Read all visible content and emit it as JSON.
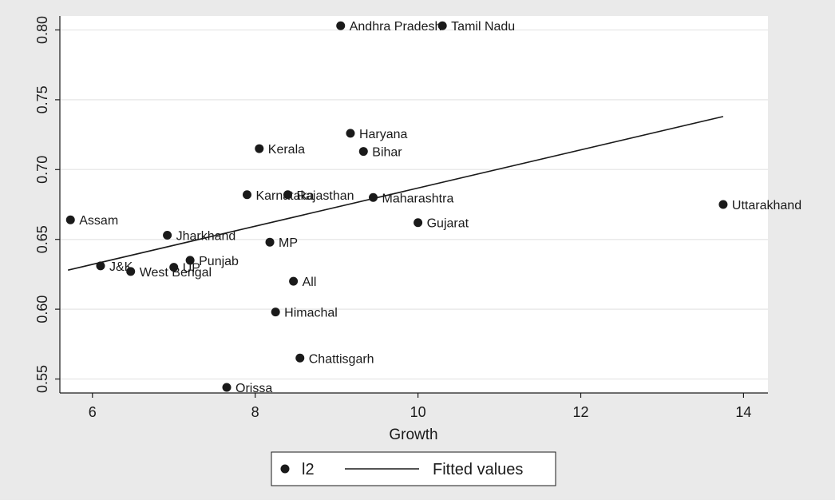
{
  "chart_data": {
    "type": "scatter",
    "title": "",
    "xlabel": "Growth",
    "ylabel": "",
    "xlim": [
      5.6,
      14.3
    ],
    "ylim": [
      0.54,
      0.81
    ],
    "x_ticks": [
      6,
      8,
      10,
      12,
      14
    ],
    "y_ticks": [
      0.55,
      0.6,
      0.65,
      0.7,
      0.75,
      0.8
    ],
    "y_tick_labels": [
      "0.55",
      "0.60",
      "0.65",
      "0.70",
      "0.75",
      "0.80"
    ],
    "grid": true,
    "legend_position": "bottom",
    "colors": {
      "plot_background": "#ffffff",
      "outer_background": "#eaeaea",
      "grid": "#eaeaea",
      "marker": "#1a1a1a",
      "line": "#1a1a1a",
      "text": "#1a1a1a"
    },
    "series": [
      {
        "name": "l2",
        "type": "scatter",
        "points": [
          {
            "label": "Andhra Pradesh",
            "x": 9.05,
            "y": 0.803
          },
          {
            "label": "Tamil Nadu",
            "x": 10.3,
            "y": 0.803
          },
          {
            "label": "Haryana",
            "x": 9.17,
            "y": 0.726
          },
          {
            "label": "Kerala",
            "x": 8.05,
            "y": 0.715
          },
          {
            "label": "Bihar",
            "x": 9.33,
            "y": 0.713
          },
          {
            "label": "Karnataka",
            "x": 7.9,
            "y": 0.682
          },
          {
            "label": "Rajasthan",
            "x": 8.4,
            "y": 0.682
          },
          {
            "label": "Maharashtra",
            "x": 9.45,
            "y": 0.68
          },
          {
            "label": "Uttarakhand",
            "x": 13.75,
            "y": 0.675
          },
          {
            "label": "Assam",
            "x": 5.73,
            "y": 0.664
          },
          {
            "label": "Gujarat",
            "x": 10.0,
            "y": 0.662
          },
          {
            "label": "Jharkhand",
            "x": 6.92,
            "y": 0.653
          },
          {
            "label": "MP",
            "x": 8.18,
            "y": 0.648
          },
          {
            "label": "Punjab",
            "x": 7.2,
            "y": 0.635
          },
          {
            "label": "J&K",
            "x": 6.1,
            "y": 0.631
          },
          {
            "label": "UP",
            "x": 7.0,
            "y": 0.63
          },
          {
            "label": "West Bengal",
            "x": 6.47,
            "y": 0.627
          },
          {
            "label": "All",
            "x": 8.47,
            "y": 0.62
          },
          {
            "label": "Himachal",
            "x": 8.25,
            "y": 0.598
          },
          {
            "label": "Chattisgarh",
            "x": 8.55,
            "y": 0.565
          },
          {
            "label": "Orissa",
            "x": 7.65,
            "y": 0.544
          }
        ]
      },
      {
        "name": "Fitted values",
        "type": "line",
        "points": [
          {
            "x": 5.7,
            "y": 0.628
          },
          {
            "x": 13.75,
            "y": 0.738
          }
        ]
      }
    ]
  }
}
